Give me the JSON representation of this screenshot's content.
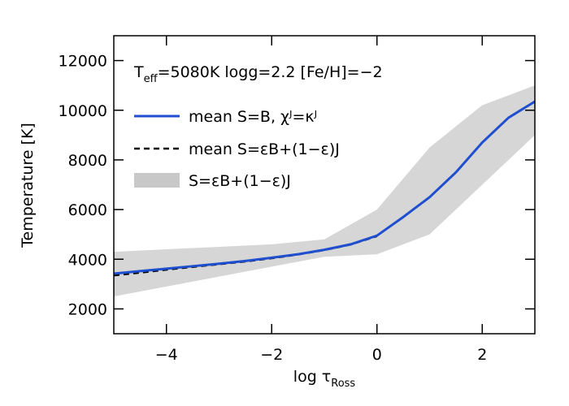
{
  "chart_data": {
    "type": "line",
    "annotation": {
      "main": "T",
      "sub": "eff",
      "rest": "=5080K  logg=2.2  [Fe/H]=−2"
    },
    "xlabel": {
      "main": "log τ",
      "sub": "Ross"
    },
    "ylabel": "Temperature [K]",
    "xlim": [
      -5,
      3
    ],
    "ylim": [
      1000,
      13000
    ],
    "xticks": [
      {
        "value": -4,
        "label": "−4"
      },
      {
        "value": -2,
        "label": "−2"
      },
      0,
      2
    ],
    "yticks": [
      2000,
      4000,
      6000,
      8000,
      10000,
      12000
    ],
    "series": [
      {
        "name": "mean S=B, χᴶ=κᴶ",
        "color": "#1f4fcf",
        "style": "solid",
        "x": [
          -5,
          -4.5,
          -4,
          -3.5,
          -3,
          -2.5,
          -2,
          -1.5,
          -1,
          -0.5,
          0,
          0.5,
          1,
          1.5,
          2,
          2.5,
          3
        ],
        "values": [
          3420,
          3520,
          3620,
          3720,
          3820,
          3930,
          4060,
          4200,
          4380,
          4600,
          4950,
          5700,
          6500,
          7500,
          8700,
          9700,
          10350
        ]
      },
      {
        "name": "mean S=εB+(1−ε)J",
        "color": "#000000",
        "style": "dashed",
        "x": [
          -5,
          -4.5,
          -4,
          -3.5,
          -3,
          -2.5,
          -2,
          -1.5,
          -1,
          -0.5,
          0
        ],
        "values": [
          3350,
          3460,
          3580,
          3690,
          3800,
          3910,
          4040,
          4190,
          4370,
          4590,
          4930
        ]
      },
      {
        "name": "S=εB+(1−ε)J",
        "color": "#c8c8c8",
        "style": "band",
        "x": [
          -5,
          -4,
          -3,
          -2,
          -1,
          0,
          1,
          2,
          3
        ],
        "upper": [
          4300,
          4400,
          4500,
          4600,
          4800,
          6000,
          8500,
          10200,
          11000
        ],
        "lower": [
          2500,
          2900,
          3300,
          3700,
          4100,
          4200,
          5000,
          7000,
          9000
        ]
      }
    ]
  }
}
